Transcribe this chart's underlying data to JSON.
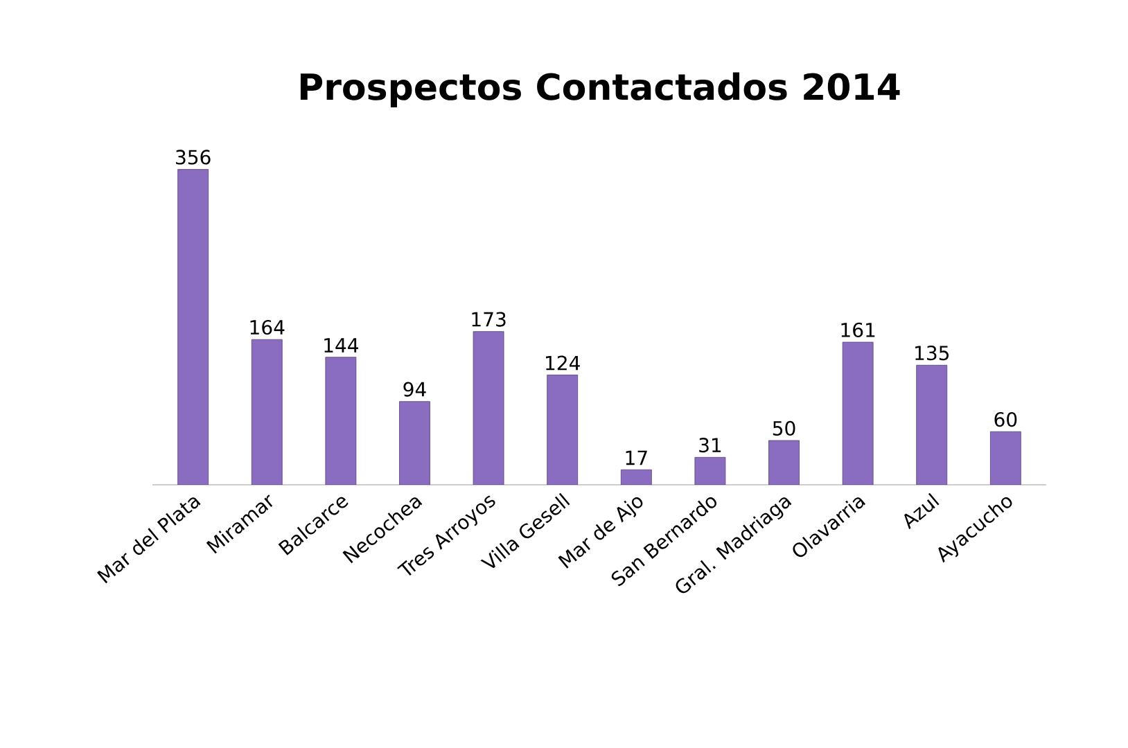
{
  "chart_data": {
    "type": "bar",
    "title": "Prospectos Contactados 2014",
    "categories": [
      "Mar del Plata",
      "Miramar",
      "Balcarce",
      "Necochea",
      "Tres Arroyos",
      "Villa Gesell",
      "Mar de Ajo",
      "San Bernardo",
      "Gral. Madriaga",
      "Olavarria",
      "Azul",
      "Ayacucho"
    ],
    "values": [
      356,
      164,
      144,
      94,
      173,
      124,
      17,
      31,
      50,
      161,
      135,
      60
    ],
    "color": "#8a6cc0",
    "data_labels": true
  }
}
